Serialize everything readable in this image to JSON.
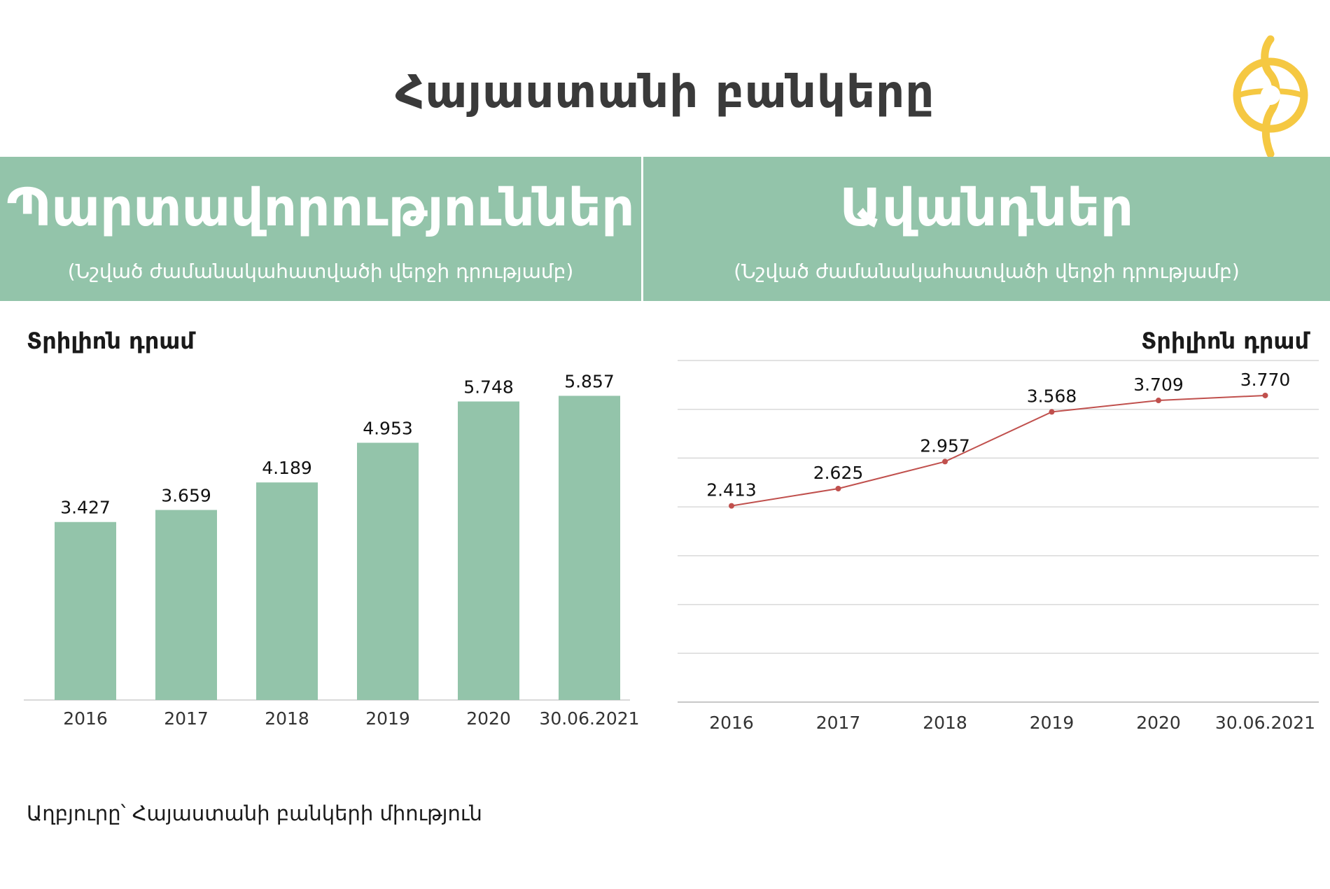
{
  "page": {
    "title": "Հայաստանի բանկերը",
    "source": "Աղբյուրը՝ Հայաստանի բանկերի միություն"
  },
  "panels": {
    "left": {
      "title": "Պարտավորություններ",
      "subtitle": "(Նշված ժամանակահատվածի վերջի դրությամբ)",
      "unit": "Տրիլիոն դրամ"
    },
    "right": {
      "title": "Ավանդներ",
      "subtitle": "(Նշված ժամանակահատվածի վերջի դրությամբ)",
      "unit": "Տրիլիոն դրամ"
    }
  },
  "colors": {
    "accent": "#93c4aa",
    "bar": "#93c4aa",
    "line": "#c0504d",
    "grid": "#d9d9d9",
    "logo": "#f5c842"
  },
  "logo": {
    "icon": "armenian-letter-logo-icon"
  },
  "chart_data": [
    {
      "type": "bar",
      "categories": [
        "2016",
        "2017",
        "2018",
        "2019",
        "2020",
        "30.06.2021"
      ],
      "values": [
        3.427,
        3.659,
        4.189,
        4.953,
        5.748,
        5.857
      ],
      "labels": [
        "3.427",
        "3.659",
        "4.189",
        "4.953",
        "5.748",
        "5.857"
      ],
      "title": "Պարտավորություններ",
      "ylabel": "Տրիլիոն դրամ",
      "ylim": [
        0,
        6.2
      ],
      "grid": false,
      "legend": "none"
    },
    {
      "type": "line",
      "categories": [
        "2016",
        "2017",
        "2018",
        "2019",
        "2020",
        "30.06.2021"
      ],
      "values": [
        2.413,
        2.625,
        2.957,
        3.568,
        3.709,
        3.77
      ],
      "labels": [
        "2.413",
        "2.625",
        "2.957",
        "3.568",
        "3.709",
        "3.770"
      ],
      "title": "Ավանդներ",
      "ylabel": "Տրիլիոն դրամ",
      "ylim": [
        0,
        4.2
      ],
      "grid": true,
      "legend": "none"
    }
  ]
}
